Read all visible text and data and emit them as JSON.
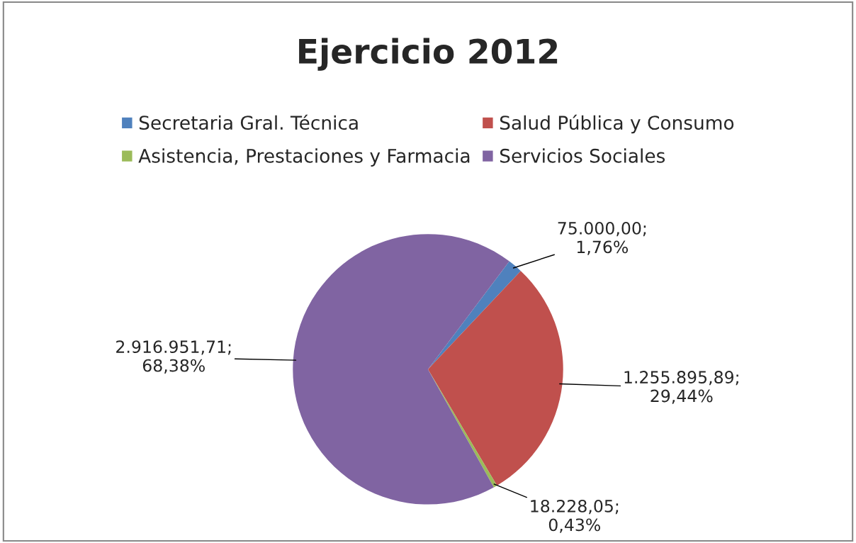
{
  "chart_data": {
    "type": "pie",
    "title": "Ejercicio 2012",
    "categories": [
      "Secretaria Gral. Técnica",
      "Salud Pública y Consumo",
      "Asistencia, Prestaciones y Farmacia",
      "Servicios Sociales"
    ],
    "values": [
      75000.0,
      1255895.89,
      18228.05,
      2916951.71
    ],
    "colors": [
      "#4f81bd",
      "#c0504d",
      "#9bbb59",
      "#8064a2"
    ],
    "value_labels": [
      "75.000,00;\n1,76%",
      "1.255.895,89;\n29,44%",
      "18.228,05;\n0,43%",
      "2.916.951,71;\n68,38%"
    ],
    "legend": "top"
  }
}
